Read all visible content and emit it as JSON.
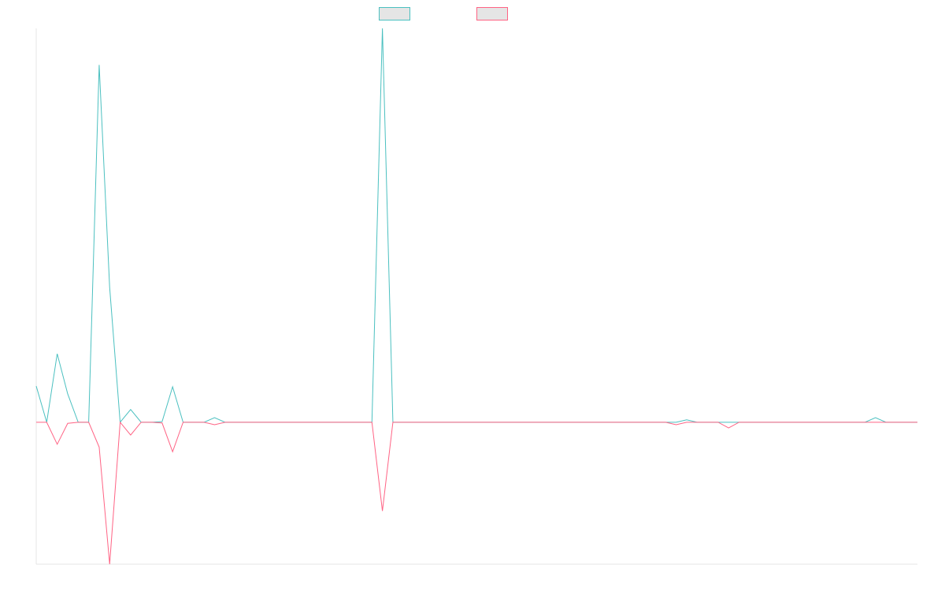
{
  "chart_data": {
    "type": "line",
    "title": "",
    "xlabel": "",
    "ylabel": "",
    "grid": false,
    "legend": {
      "placement": "top-center",
      "labels_visible": false
    },
    "x": [
      0,
      1,
      2,
      3,
      4,
      5,
      6,
      7,
      8,
      9,
      10,
      11,
      12,
      13,
      14,
      15,
      16,
      17,
      18,
      19,
      20,
      21,
      22,
      23,
      24,
      25,
      26,
      27,
      28,
      29,
      30,
      31,
      32,
      33,
      34,
      35,
      36,
      37,
      38,
      39,
      40,
      41,
      42,
      43,
      44,
      45,
      46,
      47,
      48,
      49,
      50,
      51,
      52,
      53,
      54,
      55,
      56,
      57,
      58,
      59,
      60,
      61,
      62,
      63,
      64,
      65,
      66,
      67,
      68,
      69,
      70,
      71,
      72,
      73,
      74,
      75,
      76,
      77,
      78,
      79,
      80,
      81,
      82,
      83,
      84
    ],
    "xlim": [
      0,
      84
    ],
    "ylim": [
      -40,
      111
    ],
    "series": [
      {
        "color": "#4bc0c0",
        "fill": "#e5e5e5",
        "values": [
          10.2,
          0,
          19.3,
          8,
          0,
          0,
          100.7,
          38,
          0,
          3.6,
          0,
          0,
          0.2,
          10,
          0,
          0,
          0,
          1.3,
          0,
          0,
          0,
          0,
          0,
          0,
          0,
          0,
          0,
          0,
          0,
          0,
          0,
          0,
          0,
          111,
          0,
          0,
          0,
          0,
          0,
          0,
          0,
          0,
          0,
          0,
          0,
          0,
          0,
          0,
          0,
          0,
          0,
          0,
          0,
          0,
          0,
          0,
          0,
          0,
          0,
          0,
          0,
          0,
          0.7,
          0,
          0,
          0,
          0,
          0,
          0,
          0,
          0,
          0,
          0,
          0,
          0,
          0,
          0,
          0,
          0,
          0,
          1.3,
          0,
          0,
          0,
          0
        ]
      },
      {
        "color": "#ff6384",
        "fill": "#e5e5e5",
        "values": [
          0,
          0,
          -6.2,
          -0.3,
          0,
          0,
          -7,
          -40,
          0,
          -3.6,
          0,
          0,
          -0.2,
          -8.3,
          0,
          0,
          0,
          -0.7,
          0,
          0,
          0,
          0,
          0,
          0,
          0,
          0,
          0,
          0,
          0,
          0,
          0,
          0,
          0,
          -25,
          0,
          0,
          0,
          0,
          0,
          0,
          0,
          0,
          0,
          0,
          0,
          0,
          0,
          0,
          0,
          0,
          0,
          0,
          0,
          0,
          0,
          0,
          0,
          0,
          0,
          0,
          0,
          -0.7,
          0,
          0,
          0,
          0,
          -1.6,
          0,
          0,
          0,
          0,
          0,
          0,
          0,
          0,
          0,
          0,
          0,
          0,
          0,
          0,
          0,
          0,
          0,
          0
        ]
      }
    ]
  }
}
